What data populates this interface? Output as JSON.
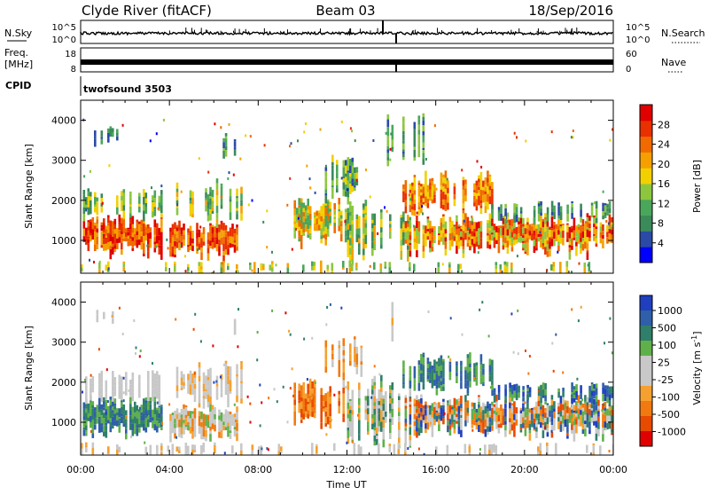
{
  "header": {
    "station": "Clyde River (fitACF)",
    "beam": "Beam 03",
    "date": "18/Sep/2016"
  },
  "strips": {
    "nsky_label": "N.Sky",
    "nsearch_label": "N.Search",
    "freq_label_1": "Freq.",
    "freq_label_2": "[MHz]",
    "nave_label": "Nave",
    "cpid_label": "CPID",
    "cpid_value": "twofsound 3503",
    "nsky_left_ticks": [
      "10^5",
      "10^0"
    ],
    "nsky_right_ticks": [
      "10^5",
      "10^0"
    ],
    "freq_left_ticks": [
      "18",
      "8"
    ],
    "freq_right_ticks": [
      "60",
      "0"
    ]
  },
  "colors": {
    "power_scale": [
      "#0000ff",
      "#2a4aa6",
      "#3b8a5a",
      "#4aa65a",
      "#8cc63f",
      "#f2d000",
      "#f5a000",
      "#f06a00",
      "#e83000",
      "#e00000"
    ],
    "velocity_scale": [
      "#1f3fbf",
      "#2f5fa8",
      "#2f7f6a",
      "#5fb04a",
      "#c8c8c8",
      "#c8c8c8",
      "#f5a030",
      "#f07a10",
      "#e84a00",
      "#e00000"
    ]
  },
  "chart_data": [
    {
      "type": "heatmap",
      "panel": "power",
      "ylabel": "Slant Range [km]",
      "xlim": [
        "00:00",
        "24:00"
      ],
      "ylim": [
        180,
        4500
      ],
      "x_ticks": [
        "00:00",
        "04:00",
        "08:00",
        "12:00",
        "16:00",
        "20:00",
        "00:00"
      ],
      "y_ticks": [
        1000,
        2000,
        3000,
        4000
      ],
      "colorbar_label": "Power [dB]",
      "colorbar_ticks": [
        4,
        8,
        12,
        16,
        20,
        24,
        28
      ],
      "colorbar_range": [
        0,
        32
      ]
    },
    {
      "type": "heatmap",
      "panel": "velocity",
      "ylabel": "Slant Range [km]",
      "xlabel": "Time UT",
      "xlim": [
        "00:00",
        "24:00"
      ],
      "ylim": [
        180,
        4500
      ],
      "x_ticks": [
        "00:00",
        "04:00",
        "08:00",
        "12:00",
        "16:00",
        "20:00",
        "00:00"
      ],
      "y_ticks": [
        1000,
        2000,
        3000,
        4000
      ],
      "colorbar_label": "Velocity [m s^-1]",
      "colorbar_ticks": [
        "1000",
        "500",
        "100",
        "25",
        "-25",
        "-100",
        "-500",
        "-1000"
      ]
    }
  ]
}
